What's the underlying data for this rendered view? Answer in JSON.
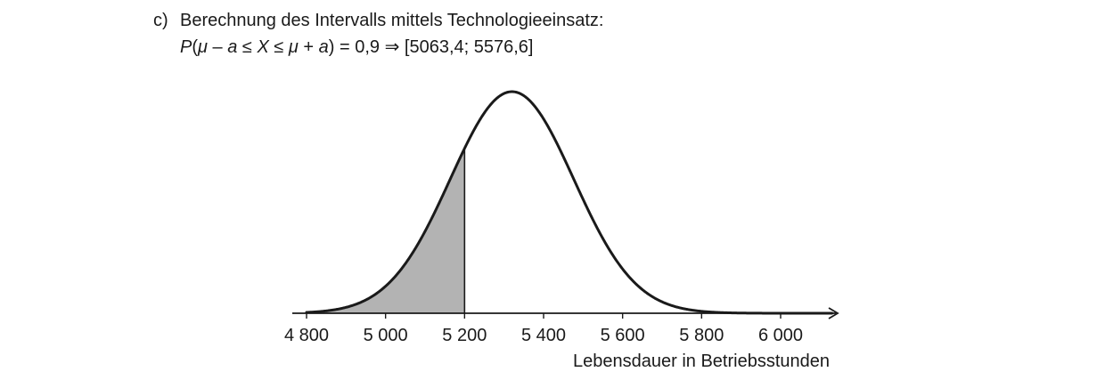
{
  "task": {
    "label": "c)",
    "title": "Berechnung des Intervalls mittels Technologieeinsatz:",
    "formula": {
      "p": "P",
      "open": "(",
      "mu1": "μ",
      "minus": " – ",
      "a1": "a",
      "le1": " ≤ ",
      "x": "X",
      "le2": " ≤ ",
      "mu2": "μ",
      "plus": " + ",
      "a2": "a",
      "close_eq": ") = 0,9  ⇒  [5063,4; 5576,6]"
    }
  },
  "chart_data": {
    "type": "area",
    "distribution": "normal",
    "mean": 5320,
    "sd": 156,
    "x_range": [
      4800,
      6130
    ],
    "xticks": [
      4800,
      5000,
      5200,
      5400,
      5600,
      5800,
      6000
    ],
    "xtick_labels": [
      "4 800",
      "5 000",
      "5 200",
      "5 400",
      "5 600",
      "5 800",
      "6 000"
    ],
    "xlabel": "Lebensdauer in Betriebsstunden",
    "shaded_region": {
      "from": 4800,
      "to": 5200,
      "color": "#b3b3b3"
    },
    "colors": {
      "curve": "#1a1a1a",
      "axis": "#1a1a1a"
    }
  }
}
